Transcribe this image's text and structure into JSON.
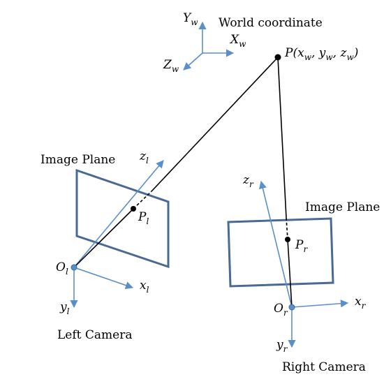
{
  "colors": {
    "axis": "#5b8fc9",
    "plane": "#4a6a94",
    "ray": "#000000",
    "camera_center": "#5b8fc9"
  },
  "world": {
    "title": "World coordinate",
    "axis_y": {
      "main": "Y",
      "sub": "w"
    },
    "axis_x": {
      "main": "X",
      "sub": "w"
    },
    "axis_z": {
      "main": "Z",
      "sub": "w"
    }
  },
  "point": {
    "label_main": "P",
    "label_coords": "(x",
    "sub1": "w",
    "sep1": ", y",
    "sub2": "w",
    "sep2": ", z",
    "sub3": "w",
    "close": ")"
  },
  "left_camera": {
    "caption": "Left Camera",
    "plane_label": "Image Plane",
    "origin": {
      "main": "O",
      "sub": "l"
    },
    "axis_x": {
      "main": "x",
      "sub": "l"
    },
    "axis_y": {
      "main": "y",
      "sub": "l"
    },
    "axis_z": {
      "main": "z",
      "sub": "l"
    },
    "projection": {
      "main": "P",
      "sub": "l"
    }
  },
  "right_camera": {
    "caption": "Right Camera",
    "plane_label": "Image Plane",
    "origin": {
      "main": "O",
      "sub": "r"
    },
    "axis_x": {
      "main": "x",
      "sub": "r"
    },
    "axis_y": {
      "main": "y",
      "sub": "r"
    },
    "axis_z": {
      "main": "z",
      "sub": "r"
    },
    "projection": {
      "main": "P",
      "sub": "r"
    }
  }
}
